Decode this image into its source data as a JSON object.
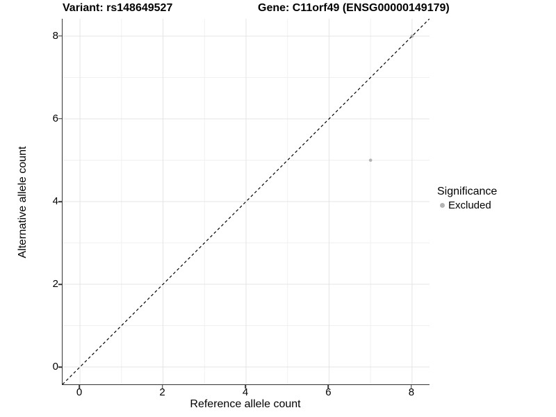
{
  "title": {
    "variant": "Variant: rs148649527",
    "gene": "Gene: C11orf49 (ENSG00000149179)"
  },
  "axes": {
    "x_label": "Reference allele count",
    "y_label": "Alternative allele count"
  },
  "legend": {
    "title": "Significance",
    "items": [
      {
        "label": "Excluded",
        "color": "#b3b3b3"
      }
    ]
  },
  "colors": {
    "background": "#ffffff",
    "axis_line": "#333333",
    "grid_major": "#e4e4e4",
    "grid_minor": "#f0f0f0",
    "identity_line": "#000000",
    "point": "#b3b3b3",
    "text": "#000000"
  },
  "chart_data": {
    "type": "scatter",
    "title": "Variant: rs148649527   Gene: C11orf49 (ENSG00000149179)",
    "xlabel": "Reference allele count",
    "ylabel": "Alternative allele count",
    "xlim": [
      -0.42,
      8.42
    ],
    "ylim": [
      -0.42,
      8.42
    ],
    "x_ticks": [
      0,
      2,
      4,
      6,
      8
    ],
    "y_ticks": [
      0,
      2,
      4,
      6,
      8
    ],
    "x_minor_ticks": [
      1,
      3,
      5,
      7
    ],
    "y_minor_ticks": [
      1,
      3,
      5,
      7
    ],
    "grid": true,
    "legend_position": "right",
    "reference_line": {
      "kind": "identity",
      "style": "dashed",
      "color": "#000000"
    },
    "series": [
      {
        "name": "Excluded",
        "color": "#b3b3b3",
        "point_radius": 2.3,
        "points": [
          {
            "x": 7,
            "y": 5
          },
          {
            "x": 8,
            "y": 8
          }
        ]
      }
    ]
  }
}
